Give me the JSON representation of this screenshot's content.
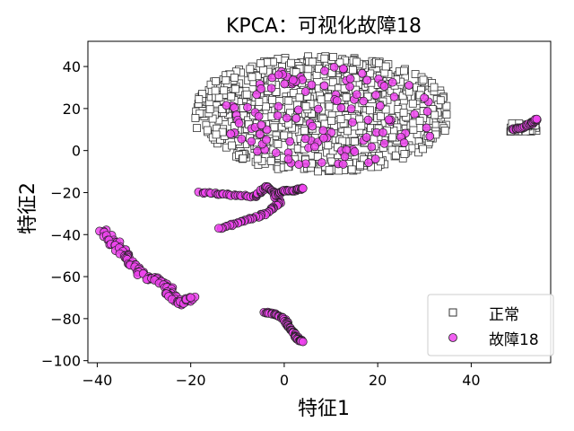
{
  "chart_data": {
    "type": "scatter",
    "title": "KPCA：可视化故障18",
    "xlabel": "特征1",
    "ylabel": "特征2",
    "xlim": [
      -42,
      57
    ],
    "ylim": [
      -101,
      52
    ],
    "xticks": [
      -40,
      -20,
      0,
      20,
      40
    ],
    "yticks": [
      -100,
      -80,
      -60,
      -40,
      -20,
      0,
      20,
      40
    ],
    "xtick_labels": [
      "−40",
      "−20",
      "0",
      "20",
      "40"
    ],
    "ytick_labels": [
      "−100",
      "−80",
      "−60",
      "−40",
      "−20",
      "0",
      "20",
      "40"
    ],
    "grid": false,
    "legend_position": "lower-right",
    "series": [
      {
        "name": "正常",
        "marker": "square",
        "facecolor": "#ffffff",
        "edgecolor": "#333333",
        "clusters": [
          {
            "region": "main",
            "x_range": [
              -19,
              35
            ],
            "y_range": [
              -10,
              45
            ],
            "approx_count": 900
          },
          {
            "region": "right",
            "x_range": [
              48,
              54
            ],
            "y_range": [
              9,
              13
            ],
            "approx_count": 40
          }
        ]
      },
      {
        "name": "故障18",
        "marker": "circle",
        "facecolor": "#ee44ee",
        "edgecolor": "#222222",
        "clusters": [
          {
            "region": "left-arc",
            "points": [
              [
                -39,
                -38
              ],
              [
                -36,
                -45
              ],
              [
                -34,
                -50
              ],
              [
                -32,
                -55
              ],
              [
                -30,
                -60
              ],
              [
                -27,
                -62
              ],
              [
                -25,
                -65
              ],
              [
                -24,
                -70
              ],
              [
                -22,
                -73
              ],
              [
                -20,
                -70
              ]
            ]
          },
          {
            "region": "middle-band",
            "points": [
              [
                -18,
                -20
              ],
              [
                -12,
                -21
              ],
              [
                -6,
                -22
              ],
              [
                -4,
                -17
              ],
              [
                -2,
                -20
              ],
              [
                -1,
                -25
              ],
              [
                -4,
                -30
              ],
              [
                -9,
                -34
              ],
              [
                -14,
                -37
              ]
            ]
          },
          {
            "region": "right-arc",
            "points": [
              [
                -2,
                -22
              ],
              [
                0,
                -19
              ],
              [
                2,
                -19
              ],
              [
                4,
                -18
              ]
            ]
          },
          {
            "region": "bottom-line",
            "points": [
              [
                -4,
                -77
              ],
              [
                -2,
                -78
              ],
              [
                0,
                -80
              ],
              [
                1,
                -84
              ],
              [
                2,
                -87
              ],
              [
                3,
                -90
              ],
              [
                4,
                -91
              ]
            ]
          },
          {
            "region": "right-cluster",
            "points": [
              [
                49,
                10
              ],
              [
                51,
                11
              ],
              [
                53,
                13
              ],
              [
                54,
                15
              ]
            ]
          },
          {
            "region": "main-overlap",
            "x_range": [
              -14,
              33
            ],
            "y_range": [
              -8,
              40
            ],
            "approx_count": 120
          }
        ]
      }
    ]
  }
}
